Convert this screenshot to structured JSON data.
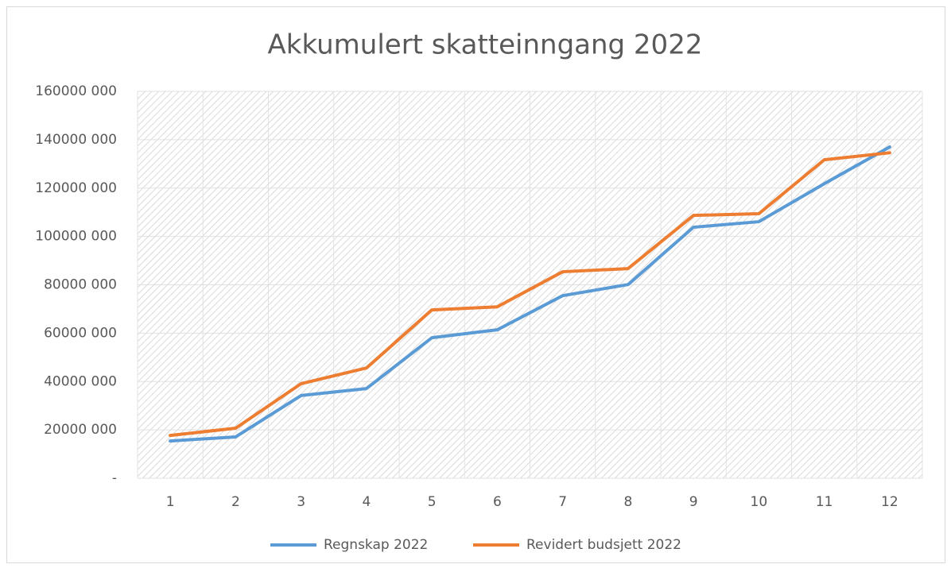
{
  "chart_data": {
    "type": "line",
    "title": "Akkumulert skatteinngang 2022",
    "categories": [
      "1",
      "2",
      "3",
      "4",
      "5",
      "6",
      "7",
      "8",
      "9",
      "10",
      "11",
      "12"
    ],
    "series": [
      {
        "name": "Regnskap 2022",
        "color": "#5b9bd5",
        "values": [
          15400000,
          17100000,
          34200000,
          37100000,
          58100000,
          61400000,
          75500000,
          80100000,
          103800000,
          106100000,
          121800000,
          137000000
        ]
      },
      {
        "name": "Revidert budsjett 2022",
        "color": "#ed7d31",
        "values": [
          17700000,
          20700000,
          39100000,
          45600000,
          69600000,
          70900000,
          85400000,
          86700000,
          108700000,
          109400000,
          131700000,
          134600000
        ]
      }
    ],
    "ylim": [
      0,
      160000000
    ],
    "yticks": [
      {
        "value": 0,
        "label": "-"
      },
      {
        "value": 20000000,
        "label": "20000 000"
      },
      {
        "value": 40000000,
        "label": "40000 000"
      },
      {
        "value": 60000000,
        "label": "60000 000"
      },
      {
        "value": 80000000,
        "label": "80000 000"
      },
      {
        "value": 100000000,
        "label": "100000 000"
      },
      {
        "value": 120000000,
        "label": "120000 000"
      },
      {
        "value": 140000000,
        "label": "140000 000"
      },
      {
        "value": 160000000,
        "label": "160000 000"
      }
    ],
    "grid": true,
    "legend": "bottom"
  }
}
